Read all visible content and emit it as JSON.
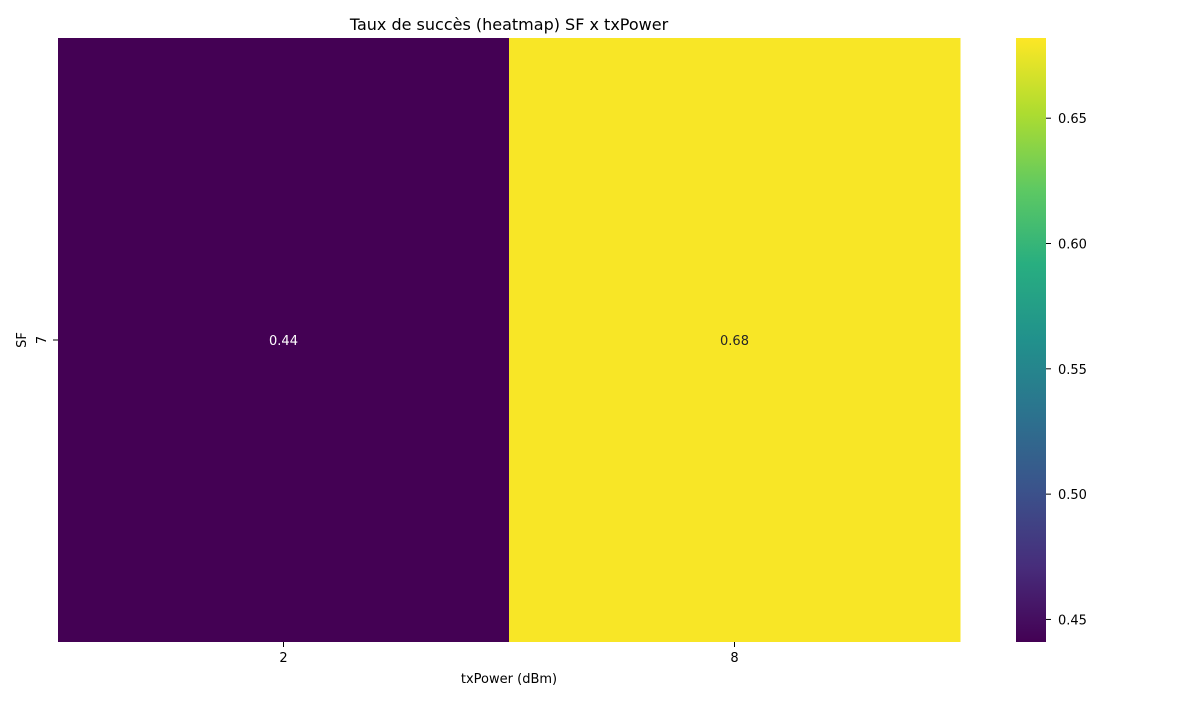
{
  "chart_data": {
    "type": "heatmap",
    "title": "Taux de succès (heatmap) SF x txPower",
    "xlabel": "txPower (dBm)",
    "ylabel": "SF",
    "x_categories": [
      "2",
      "8"
    ],
    "y_categories": [
      "7"
    ],
    "values": [
      [
        0.44,
        0.68
      ]
    ],
    "annotations": [
      "0.44",
      "0.68"
    ],
    "colormap": "viridis",
    "colorbar": {
      "vmin": 0.441,
      "vmax": 0.682,
      "ticks": [
        0.45,
        0.5,
        0.55,
        0.6,
        0.65
      ],
      "tick_labels": [
        "0.45",
        "0.50",
        "0.55",
        "0.60",
        "0.65"
      ]
    }
  }
}
